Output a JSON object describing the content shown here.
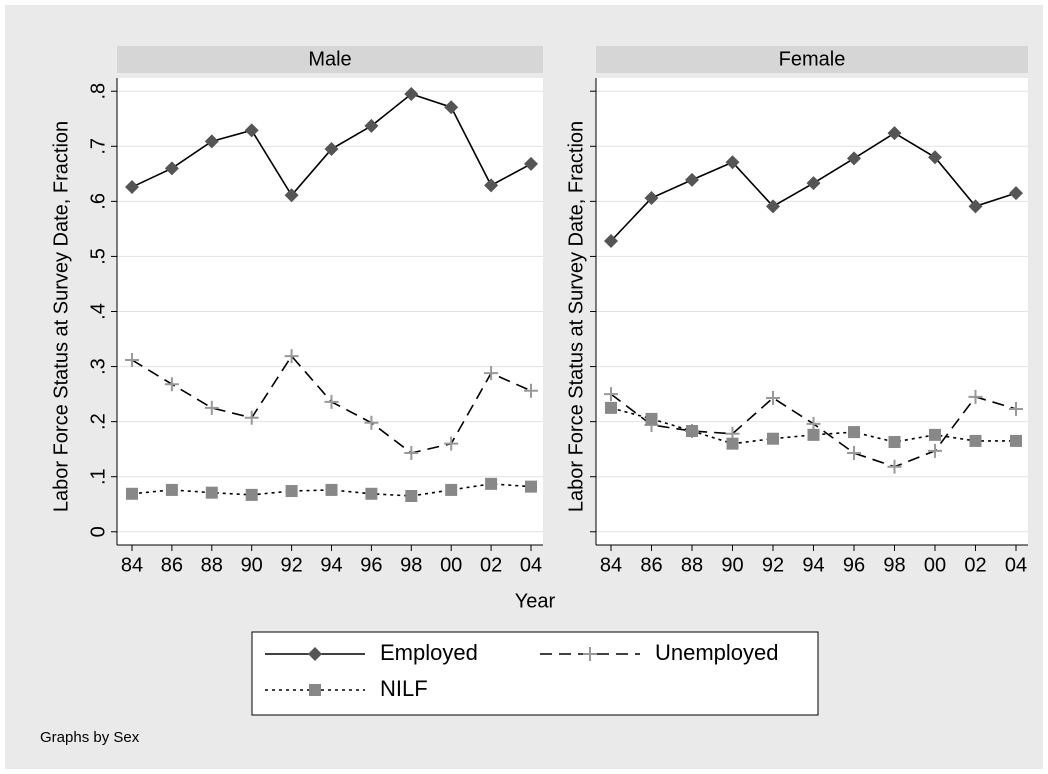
{
  "chart_data": [
    {
      "type": "line",
      "title": "Male",
      "ylabel": "Labor Force Status at Survey Date, Fraction",
      "categories": [
        "84",
        "86",
        "88",
        "90",
        "92",
        "94",
        "96",
        "98",
        "00",
        "02",
        "04"
      ],
      "series": [
        {
          "name": "Employed",
          "color": "#555555",
          "style": "solid",
          "marker": "diamond",
          "values": [
            0.626,
            0.66,
            0.709,
            0.729,
            0.611,
            0.695,
            0.737,
            0.795,
            0.771,
            0.629,
            0.668
          ]
        },
        {
          "name": "Unemployed",
          "color": "#999999",
          "style": "dashed",
          "marker": "plus",
          "values": [
            0.312,
            0.268,
            0.225,
            0.207,
            0.319,
            0.236,
            0.198,
            0.143,
            0.16,
            0.288,
            0.256
          ]
        },
        {
          "name": "NILF",
          "color": "#888888",
          "style": "dotted",
          "marker": "square",
          "values": [
            0.069,
            0.076,
            0.071,
            0.067,
            0.074,
            0.076,
            0.069,
            0.065,
            0.076,
            0.087,
            0.082
          ]
        }
      ],
      "ylim": [
        -0.024,
        0.824
      ],
      "yticks": [
        0,
        {
          "value": 0.1,
          "label": ".1"
        },
        {
          "value": 0.2,
          "label": ".2"
        },
        {
          "value": 0.3,
          "label": ".3"
        },
        {
          "value": 0.4,
          "label": ".4"
        },
        {
          "value": 0.5,
          "label": ".5"
        },
        {
          "value": 0.6,
          "label": ".6"
        },
        {
          "value": 0.7,
          "label": ".7"
        },
        {
          "value": 0.8,
          "label": ".8"
        }
      ],
      "grid": true
    },
    {
      "type": "line",
      "title": "Female",
      "ylabel": "Labor Force Status at Survey Date, Fraction",
      "categories": [
        "84",
        "86",
        "88",
        "90",
        "92",
        "94",
        "96",
        "98",
        "00",
        "02",
        "04"
      ],
      "series": [
        {
          "color": "#555555",
          "style": "solid",
          "marker": "diamond",
          "values": [
            0.528,
            0.606,
            0.639,
            0.671,
            0.591,
            0.633,
            0.678,
            0.724,
            0.68,
            0.591,
            0.615
          ]
        },
        {
          "color": "#999999",
          "style": "dashed",
          "marker": "plus",
          "values": [
            0.25,
            0.194,
            0.183,
            0.178,
            0.243,
            0.196,
            0.143,
            0.118,
            0.147,
            0.245,
            0.223
          ]
        },
        {
          "color": "#888888",
          "style": "dotted",
          "marker": "square",
          "values": [
            0.225,
            0.205,
            0.183,
            0.16,
            0.169,
            0.176,
            0.181,
            0.163,
            0.176,
            0.165,
            0.165
          ]
        }
      ],
      "ylim": [
        -0.024,
        0.824
      ],
      "yticks": [
        0,
        0.1,
        0.2,
        0.3,
        0.4,
        0.5,
        0.6,
        0.7,
        0.8
      ],
      "grid": true
    }
  ],
  "xlabel": "Year",
  "note": "Graphs by Sex"
}
